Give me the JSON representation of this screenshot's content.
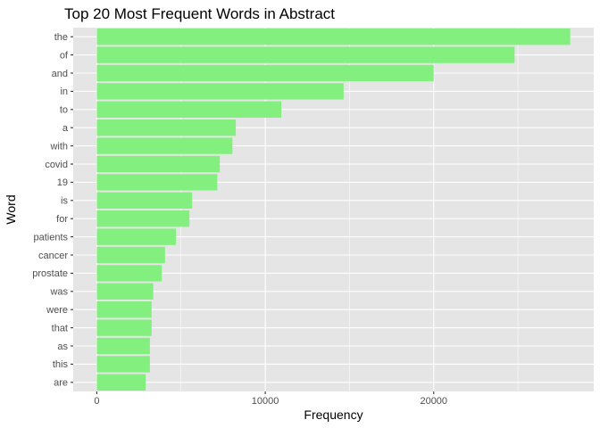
{
  "chart_data": {
    "type": "bar",
    "orientation": "horizontal",
    "title": "Top 20 Most Frequent Words in Abstract",
    "xlabel": "Frequency",
    "ylabel": "Word",
    "categories": [
      "the",
      "of",
      "and",
      "in",
      "to",
      "a",
      "with",
      "covid",
      "19",
      "is",
      "for",
      "patients",
      "cancer",
      "prostate",
      "was",
      "were",
      "that",
      "as",
      "this",
      "are"
    ],
    "values": [
      28100,
      24800,
      20000,
      14650,
      10950,
      8250,
      8050,
      7300,
      7150,
      5650,
      5500,
      4700,
      4050,
      3850,
      3350,
      3250,
      3250,
      3150,
      3150,
      2900
    ],
    "xlim": [
      -1400,
      29500
    ],
    "x_ticks": [
      0,
      10000,
      20000
    ],
    "x_tick_labels": [
      "0",
      "10000",
      "20000"
    ],
    "grid": true,
    "bar_color": "#82ef7f",
    "panel_color": "#e5e5e5",
    "grid_color": "#ffffff"
  }
}
